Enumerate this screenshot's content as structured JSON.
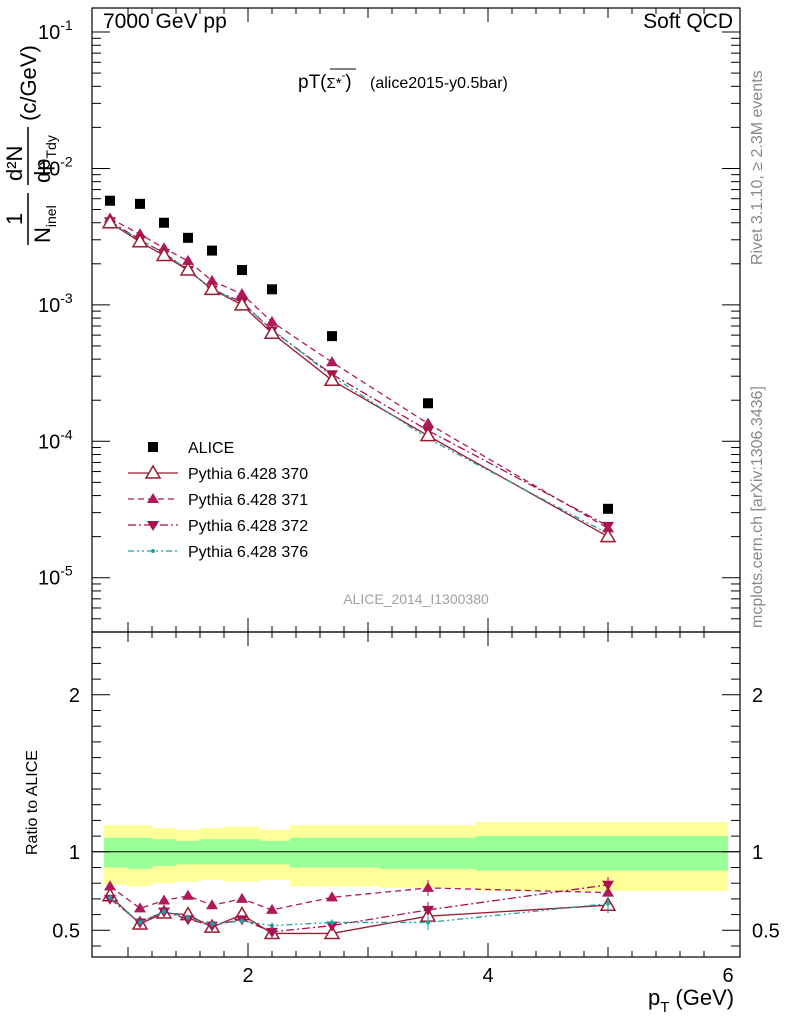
{
  "header": {
    "left": "7000 GeV pp",
    "right": "Soft QCD"
  },
  "side_labels": {
    "rivet": "Rivet 3.1.10, ≥ 2.3M events",
    "mcplots": "mcplots.cern.ch [arXiv:1306.3436]"
  },
  "plot_title": {
    "main": "pT(",
    "particle": "Σ*",
    "sup": "-",
    "close": ")",
    "tag": "(alice2015-y0.5bar)"
  },
  "watermark": "ALICE_2014_I1300380",
  "y_label_main": {
    "frac_num": "1",
    "frac_den": "N",
    "den_sub": "inel",
    "dn": "d²N",
    "dp": "dp",
    "dp_sub": "Tdy",
    "unit": "(c/GeV)"
  },
  "y_label_ratio": "Ratio to ALICE",
  "x_label": {
    "p": "p",
    "sub": "T",
    "unit": "(GeV)"
  },
  "legend": [
    {
      "name": "ALICE",
      "color": "#000000"
    },
    {
      "name": "Pythia 6.428 370",
      "color": "#9b1b30"
    },
    {
      "name": "Pythia 6.428 371",
      "color": "#b0185a"
    },
    {
      "name": "Pythia 6.428 372",
      "color": "#a8104f"
    },
    {
      "name": "Pythia 6.428 376",
      "color": "#20a0a0"
    }
  ],
  "chart_data": [
    {
      "type": "scatter",
      "yscale": "log",
      "ylim": [
        4e-06,
        0.15
      ],
      "xlim": [
        0.7,
        6.1
      ],
      "y_ticks": [
        "10^-1",
        "10^-2",
        "10^-3",
        "10^-4",
        "10^-5"
      ],
      "series": [
        {
          "name": "ALICE",
          "marker": "square",
          "x": [
            0.85,
            1.1,
            1.3,
            1.5,
            1.7,
            1.95,
            2.2,
            2.7,
            3.5,
            5.0
          ],
          "y": [
            0.0058,
            0.0055,
            0.004,
            0.0031,
            0.0025,
            0.0018,
            0.0013,
            0.00059,
            0.00019,
            3.2e-05
          ]
        },
        {
          "name": "Pythia 6.428 370",
          "marker": "triangle-open",
          "line": "solid",
          "x": [
            0.85,
            1.1,
            1.3,
            1.5,
            1.7,
            1.95,
            2.2,
            2.7,
            3.5,
            5.0
          ],
          "y": [
            0.004,
            0.0029,
            0.0023,
            0.0018,
            0.0013,
            0.001,
            0.00062,
            0.00028,
            0.00011,
            2e-05
          ]
        },
        {
          "name": "Pythia 6.428 371",
          "marker": "triangle-filled",
          "line": "dashed",
          "x": [
            0.85,
            1.1,
            1.3,
            1.5,
            1.7,
            1.95,
            2.2,
            2.7,
            3.5,
            5.0
          ],
          "y": [
            0.0043,
            0.0033,
            0.0026,
            0.0021,
            0.0015,
            0.0012,
            0.00075,
            0.00038,
            0.000135,
            2.3e-05
          ]
        },
        {
          "name": "Pythia 6.428 372",
          "marker": "triangle-down-filled",
          "line": "dashdot",
          "x": [
            0.85,
            1.1,
            1.3,
            1.5,
            1.7,
            1.95,
            2.2,
            2.7,
            3.5,
            5.0
          ],
          "y": [
            0.0041,
            0.003,
            0.0024,
            0.0018,
            0.0013,
            0.00105,
            0.00065,
            0.00031,
            0.00012,
            2.4e-05
          ]
        },
        {
          "name": "Pythia 6.428 376",
          "marker": "dot",
          "line": "dashdotdot",
          "x": [
            0.85,
            1.1,
            1.3,
            1.5,
            1.7,
            1.95,
            2.2,
            2.7,
            3.5,
            5.0
          ],
          "y": [
            0.004,
            0.003,
            0.0024,
            0.0018,
            0.0013,
            0.00103,
            0.00066,
            0.0003,
            0.000105,
            2.1e-05
          ]
        }
      ]
    },
    {
      "type": "line",
      "ylim": [
        0.33,
        2.4
      ],
      "xlim": [
        0.7,
        6.1
      ],
      "y_ticks": [
        0.5,
        1,
        2
      ],
      "x_ticks": [
        2,
        4,
        6
      ],
      "bands": {
        "edges": [
          0.7,
          1.0,
          1.2,
          1.4,
          1.6,
          1.8,
          2.1,
          2.35,
          3.1,
          3.9,
          6.1
        ],
        "yellow_lo": [
          0.79,
          0.78,
          0.8,
          0.81,
          0.82,
          0.81,
          0.82,
          0.78,
          0.77,
          0.75,
          0.75
        ],
        "yellow_hi": [
          1.17,
          1.17,
          1.15,
          1.14,
          1.15,
          1.16,
          1.14,
          1.17,
          1.17,
          1.19,
          1.19
        ],
        "green_lo": [
          0.9,
          0.89,
          0.91,
          0.92,
          0.92,
          0.92,
          0.92,
          0.9,
          0.89,
          0.88,
          0.88
        ],
        "green_hi": [
          1.09,
          1.09,
          1.08,
          1.07,
          1.08,
          1.08,
          1.07,
          1.09,
          1.09,
          1.1,
          1.1
        ]
      },
      "series": [
        {
          "name": "Pythia 6.428 370",
          "x": [
            0.85,
            1.1,
            1.3,
            1.5,
            1.7,
            1.95,
            2.2,
            2.7,
            3.5,
            5.0
          ],
          "y": [
            0.72,
            0.54,
            0.61,
            0.6,
            0.52,
            0.6,
            0.48,
            0.48,
            0.59,
            0.66
          ]
        },
        {
          "name": "Pythia 6.428 371",
          "x": [
            0.85,
            1.1,
            1.3,
            1.5,
            1.7,
            1.95,
            2.2,
            2.7,
            3.5,
            5.0
          ],
          "y": [
            0.78,
            0.64,
            0.69,
            0.72,
            0.66,
            0.7,
            0.63,
            0.71,
            0.77,
            0.74
          ]
        },
        {
          "name": "Pythia 6.428 372",
          "x": [
            0.85,
            1.1,
            1.3,
            1.5,
            1.7,
            1.95,
            2.2,
            2.7,
            3.5,
            5.0
          ],
          "y": [
            0.7,
            0.55,
            0.62,
            0.57,
            0.53,
            0.57,
            0.49,
            0.53,
            0.63,
            0.79
          ]
        },
        {
          "name": "Pythia 6.428 376",
          "x": [
            0.85,
            1.1,
            1.3,
            1.5,
            1.7,
            1.95,
            2.2,
            2.7,
            3.5,
            5.0
          ],
          "y": [
            0.71,
            0.55,
            0.62,
            0.58,
            0.54,
            0.56,
            0.53,
            0.55,
            0.55,
            0.67
          ]
        }
      ]
    }
  ]
}
